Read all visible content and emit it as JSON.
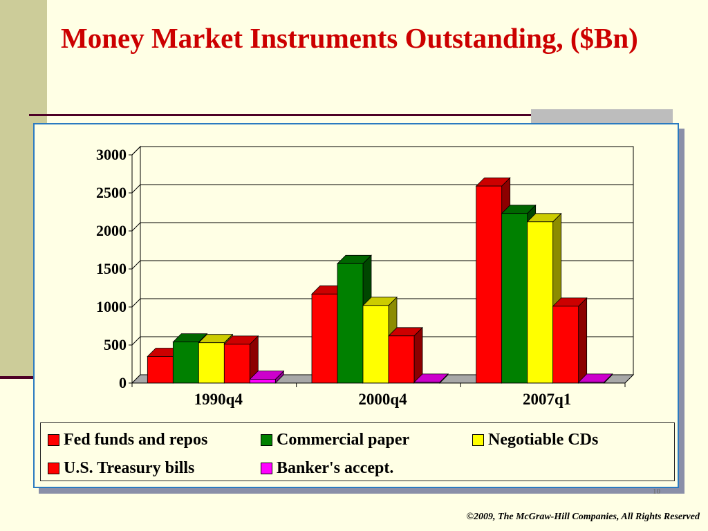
{
  "slide": {
    "title": "Money Market Instruments Outstanding, ($Bn)",
    "footer": "©2009, The McGraw-Hill Companies, All Rights Reserved",
    "page_number": "10"
  },
  "colors": {
    "title": "#cc0000",
    "background": "#ffffe5",
    "band": "#cccc99"
  },
  "chart_data": {
    "type": "bar",
    "categories": [
      "1990q4",
      "2000q4",
      "2007q1"
    ],
    "series": [
      {
        "name": "Fed funds and repos",
        "color": "#ff0000",
        "values": [
          350,
          1170,
          2590
        ]
      },
      {
        "name": "Commercial paper",
        "color": "#008000",
        "values": [
          540,
          1570,
          2230
        ]
      },
      {
        "name": "Negotiable CDs",
        "color": "#ffff00",
        "values": [
          530,
          1020,
          2120
        ]
      },
      {
        "name": "U.S. Treasury bills",
        "color": "#ff0000",
        "values": [
          510,
          620,
          1010
        ]
      },
      {
        "name": "Banker's accept.",
        "color": "#ff00ff",
        "values": [
          50,
          10,
          10
        ]
      }
    ],
    "y_ticks": [
      "0",
      "500",
      "1000",
      "1500",
      "2000",
      "2500",
      "3000"
    ],
    "ylim": [
      0,
      3000
    ],
    "grid": true,
    "three_d": true,
    "legend_position": "bottom"
  }
}
